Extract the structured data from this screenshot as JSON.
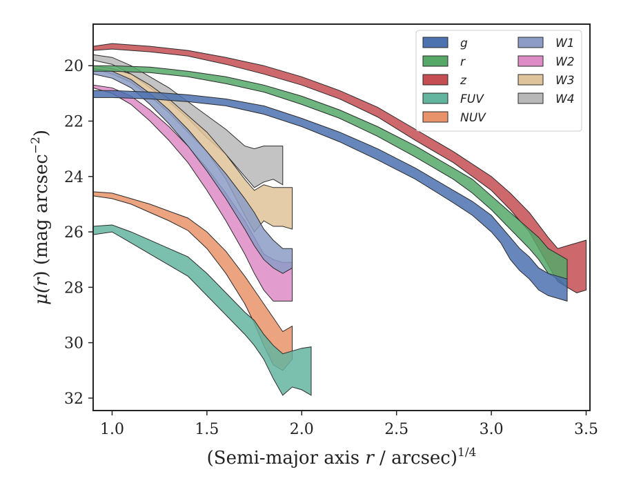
{
  "chart_data": {
    "type": "area",
    "xlabel_main": "(Semi-major axis ",
    "xlabel_var": "r",
    "xlabel_rest": " / arcsec)",
    "xlabel_sup": "1/4",
    "ylabel_mu": "μ(",
    "ylabel_var": "r",
    "ylabel_unit": ") (mag arcsec",
    "ylabel_sup": "−2",
    "ylabel_close": ")",
    "xlim": [
      0.9,
      3.52
    ],
    "ylim": [
      32.45,
      18.5
    ],
    "y_inverted": true,
    "grid": false,
    "legend_position": "top-right",
    "xticks": [
      1.0,
      1.5,
      2.0,
      2.5,
      3.0,
      3.5
    ],
    "xtick_labels": [
      "1.0",
      "1.5",
      "2.0",
      "2.5",
      "3.0",
      "3.5"
    ],
    "yticks": [
      20,
      22,
      24,
      26,
      28,
      30,
      32
    ],
    "ytick_labels": [
      "20",
      "22",
      "24",
      "26",
      "28",
      "30",
      "32"
    ],
    "series": [
      {
        "name": "g",
        "color": "#4c72b0",
        "x": [
          0.9,
          1.0,
          1.2,
          1.4,
          1.6,
          1.8,
          2.0,
          2.2,
          2.4,
          2.6,
          2.8,
          2.9,
          3.0,
          3.05,
          3.1,
          3.15,
          3.2,
          3.25,
          3.3,
          3.35,
          3.4
        ],
        "lo": [
          20.9,
          20.9,
          20.95,
          21.05,
          21.2,
          21.45,
          21.9,
          22.4,
          23.0,
          23.7,
          24.5,
          24.9,
          25.4,
          25.8,
          26.2,
          26.6,
          26.9,
          27.3,
          27.5,
          27.6,
          27.7
        ],
        "hi": [
          21.15,
          21.15,
          21.2,
          21.3,
          21.45,
          21.75,
          22.2,
          22.75,
          23.4,
          24.1,
          24.95,
          25.4,
          26.0,
          26.4,
          27.0,
          27.4,
          27.7,
          28.1,
          28.3,
          28.4,
          28.5
        ]
      },
      {
        "name": "r",
        "color": "#55a868",
        "x": [
          0.9,
          1.0,
          1.2,
          1.4,
          1.6,
          1.8,
          2.0,
          2.2,
          2.4,
          2.6,
          2.8,
          2.9,
          3.0,
          3.1,
          3.2,
          3.25,
          3.3,
          3.35,
          3.4
        ],
        "lo": [
          20.0,
          20.0,
          20.05,
          20.2,
          20.4,
          20.7,
          21.1,
          21.6,
          22.2,
          22.9,
          23.7,
          24.1,
          24.7,
          25.3,
          25.9,
          26.2,
          26.6,
          26.8,
          27.0
        ],
        "hi": [
          20.2,
          20.2,
          20.25,
          20.4,
          20.65,
          20.95,
          21.4,
          21.9,
          22.55,
          23.3,
          24.1,
          24.6,
          25.2,
          25.9,
          26.6,
          27.0,
          27.5,
          27.7,
          28.0
        ]
      },
      {
        "name": "z",
        "color": "#c44e52",
        "x": [
          0.9,
          1.0,
          1.2,
          1.4,
          1.6,
          1.8,
          2.0,
          2.2,
          2.4,
          2.6,
          2.8,
          3.0,
          3.1,
          3.2,
          3.3,
          3.35,
          3.4,
          3.45,
          3.5
        ],
        "lo": [
          19.3,
          19.2,
          19.3,
          19.45,
          19.7,
          20.0,
          20.4,
          20.9,
          21.5,
          22.3,
          23.1,
          24.0,
          24.6,
          25.3,
          26.2,
          26.6,
          26.5,
          26.4,
          26.3
        ],
        "hi": [
          19.45,
          19.4,
          19.5,
          19.65,
          19.95,
          20.3,
          20.7,
          21.2,
          21.85,
          22.7,
          23.5,
          24.5,
          25.2,
          26.0,
          27.2,
          27.8,
          28.0,
          28.2,
          28.1
        ]
      },
      {
        "name": "FUV",
        "color": "#64b5a0",
        "x": [
          0.9,
          1.0,
          1.1,
          1.2,
          1.3,
          1.4,
          1.5,
          1.6,
          1.7,
          1.75,
          1.8,
          1.85,
          1.9,
          1.95,
          2.0,
          2.05
        ],
        "lo": [
          25.8,
          25.75,
          26.0,
          26.3,
          26.6,
          26.9,
          27.5,
          28.2,
          28.9,
          29.2,
          29.7,
          30.1,
          30.4,
          30.3,
          30.2,
          30.15
        ],
        "hi": [
          26.1,
          26.0,
          26.4,
          26.8,
          27.2,
          27.6,
          28.3,
          29.0,
          29.7,
          30.1,
          30.6,
          31.3,
          31.9,
          31.6,
          31.7,
          31.9
        ]
      },
      {
        "name": "NUV",
        "color": "#e8936a",
        "x": [
          0.9,
          1.0,
          1.1,
          1.2,
          1.3,
          1.4,
          1.5,
          1.6,
          1.7,
          1.75,
          1.8,
          1.85,
          1.9,
          1.95
        ],
        "lo": [
          24.55,
          24.6,
          24.8,
          25.0,
          25.25,
          25.5,
          26.0,
          26.7,
          27.6,
          28.1,
          28.6,
          29.1,
          29.6,
          29.4
        ],
        "hi": [
          24.7,
          24.8,
          25.0,
          25.3,
          25.6,
          25.95,
          26.6,
          27.5,
          28.6,
          29.3,
          30.1,
          30.8,
          31.0,
          30.6
        ]
      },
      {
        "name": "W1",
        "color": "#8c9cc7",
        "x": [
          0.9,
          1.0,
          1.1,
          1.2,
          1.3,
          1.4,
          1.5,
          1.6,
          1.7,
          1.75,
          1.8,
          1.85,
          1.9,
          1.95
        ],
        "lo": [
          20.1,
          20.2,
          20.5,
          21.0,
          21.6,
          22.3,
          23.1,
          23.9,
          24.8,
          25.3,
          25.9,
          26.3,
          26.6,
          26.6
        ],
        "hi": [
          20.3,
          20.45,
          20.8,
          21.4,
          22.1,
          22.9,
          23.8,
          24.8,
          25.9,
          26.5,
          27.0,
          27.3,
          27.5,
          27.3
        ]
      },
      {
        "name": "W2",
        "color": "#dd8cc5",
        "x": [
          0.9,
          1.0,
          1.1,
          1.2,
          1.3,
          1.4,
          1.5,
          1.6,
          1.7,
          1.75,
          1.8,
          1.85,
          1.9,
          1.95
        ],
        "lo": [
          20.7,
          20.8,
          21.1,
          21.6,
          22.2,
          22.9,
          23.7,
          24.6,
          25.6,
          26.2,
          26.8,
          27.0,
          27.1,
          27.1
        ],
        "hi": [
          20.8,
          21.0,
          21.4,
          22.0,
          22.7,
          23.5,
          24.5,
          25.6,
          26.8,
          27.5,
          28.1,
          28.5,
          28.5,
          28.5
        ]
      },
      {
        "name": "W3",
        "color": "#dfc39a",
        "x": [
          0.9,
          1.0,
          1.1,
          1.2,
          1.3,
          1.4,
          1.5,
          1.6,
          1.7,
          1.75,
          1.8,
          1.85,
          1.9,
          1.95
        ],
        "lo": [
          20.0,
          20.1,
          20.3,
          20.7,
          21.2,
          21.8,
          22.4,
          23.2,
          24.1,
          24.5,
          24.3,
          24.4,
          24.4,
          24.4
        ],
        "hi": [
          20.1,
          20.3,
          20.6,
          21.1,
          21.7,
          22.4,
          23.1,
          24.1,
          25.4,
          26.0,
          25.6,
          25.8,
          25.8,
          25.9
        ]
      },
      {
        "name": "W4",
        "color": "#b8b8b8",
        "x": [
          0.9,
          1.0,
          1.1,
          1.2,
          1.3,
          1.4,
          1.5,
          1.6,
          1.7,
          1.75,
          1.8,
          1.85,
          1.9
        ],
        "lo": [
          19.6,
          19.7,
          20.0,
          20.4,
          20.8,
          21.3,
          21.8,
          22.3,
          22.9,
          23.0,
          22.9,
          22.9,
          22.9
        ],
        "hi": [
          19.8,
          19.95,
          20.3,
          20.8,
          21.3,
          21.9,
          22.6,
          23.2,
          24.0,
          24.4,
          24.2,
          24.1,
          24.3
        ]
      }
    ]
  }
}
